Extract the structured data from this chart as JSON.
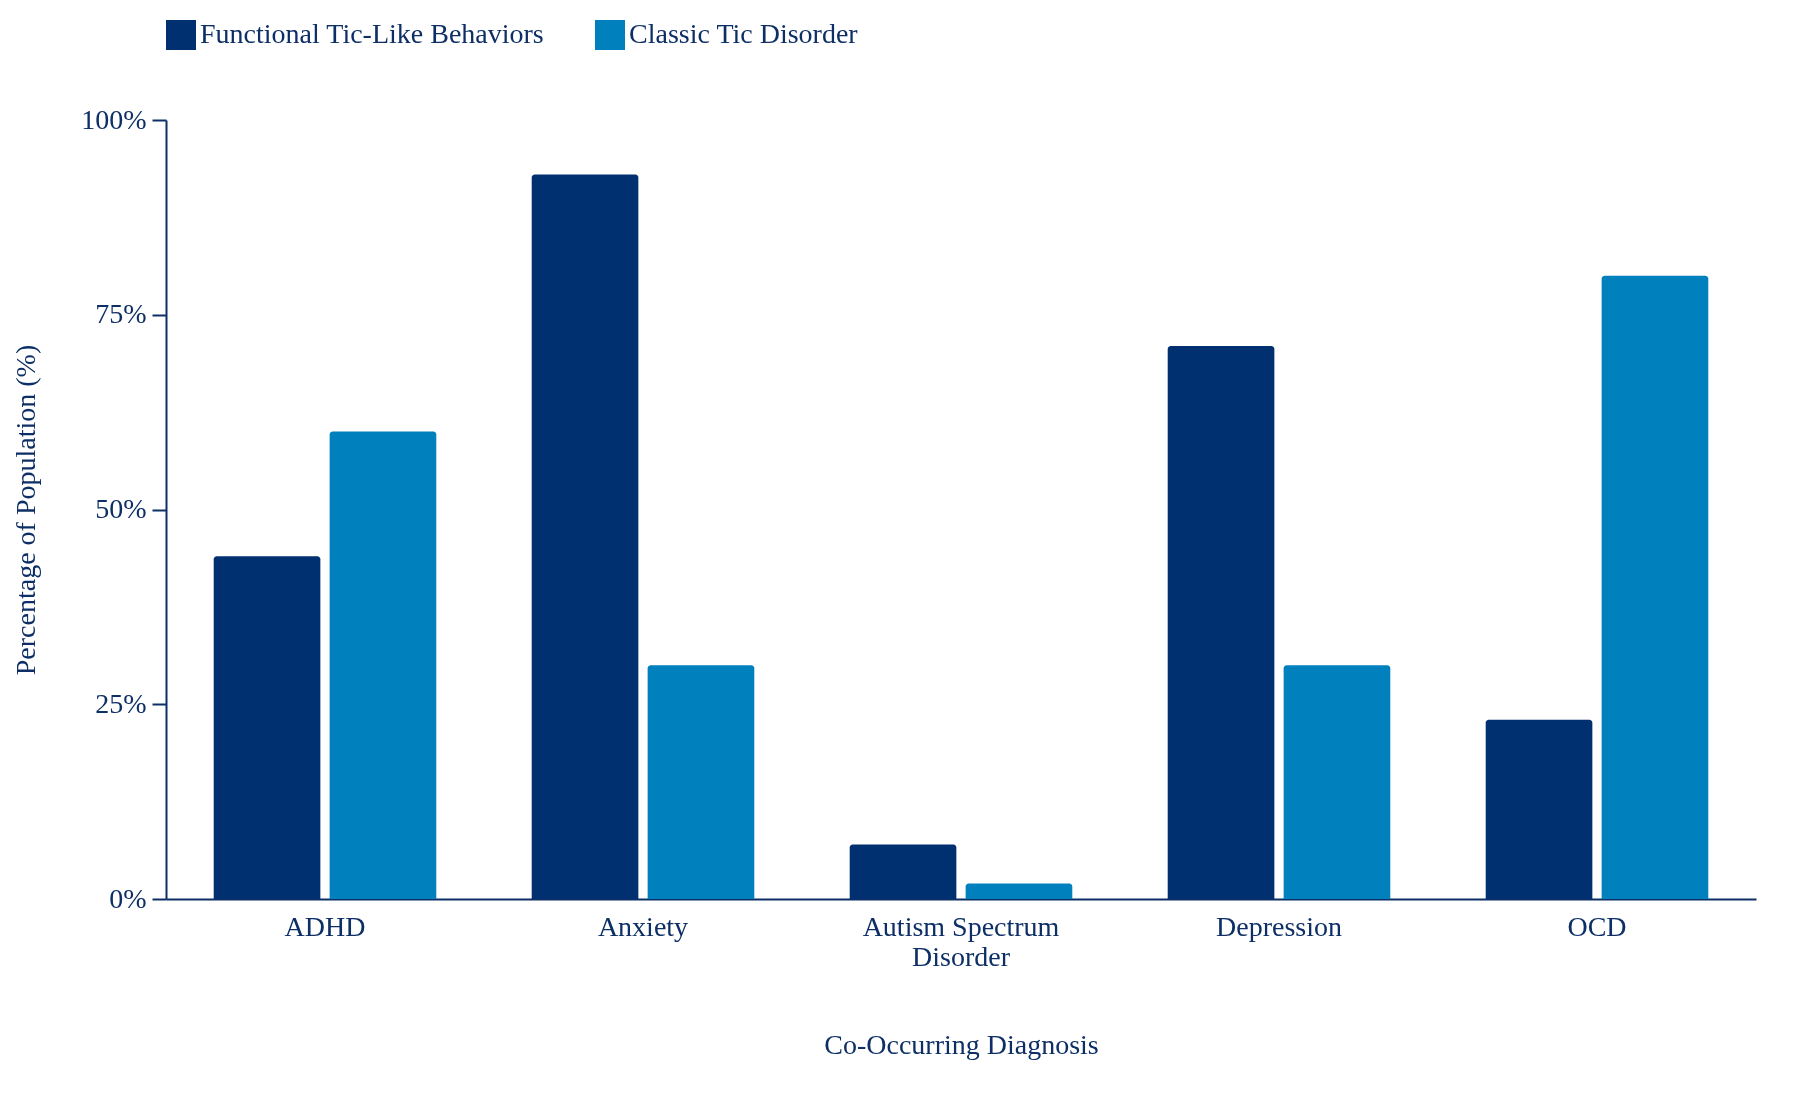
{
  "chart_data": {
    "type": "bar",
    "xlabel": "Co-Occurring Diagnosis",
    "ylabel": "Percentage of Population (%)",
    "categories": [
      "ADHD",
      "Anxiety",
      "Autism Spectrum Disorder",
      "Depression",
      "OCD"
    ],
    "series": [
      {
        "name": "Functional Tic-Like Behaviors",
        "color": "#003070",
        "values": [
          44,
          93,
          7,
          71,
          23
        ]
      },
      {
        "name": "Classic Tic Disorder",
        "color": "#0080bc",
        "values": [
          60,
          30,
          2,
          30,
          80
        ]
      }
    ],
    "ylim": [
      0,
      100
    ],
    "yticks": [
      {
        "value": 0,
        "label": "0%"
      },
      {
        "value": 25,
        "label": "25%"
      },
      {
        "value": 50,
        "label": "50%"
      },
      {
        "value": 75,
        "label": "75%"
      },
      {
        "value": 100,
        "label": "100%"
      }
    ],
    "grid": false,
    "legend": "top"
  }
}
